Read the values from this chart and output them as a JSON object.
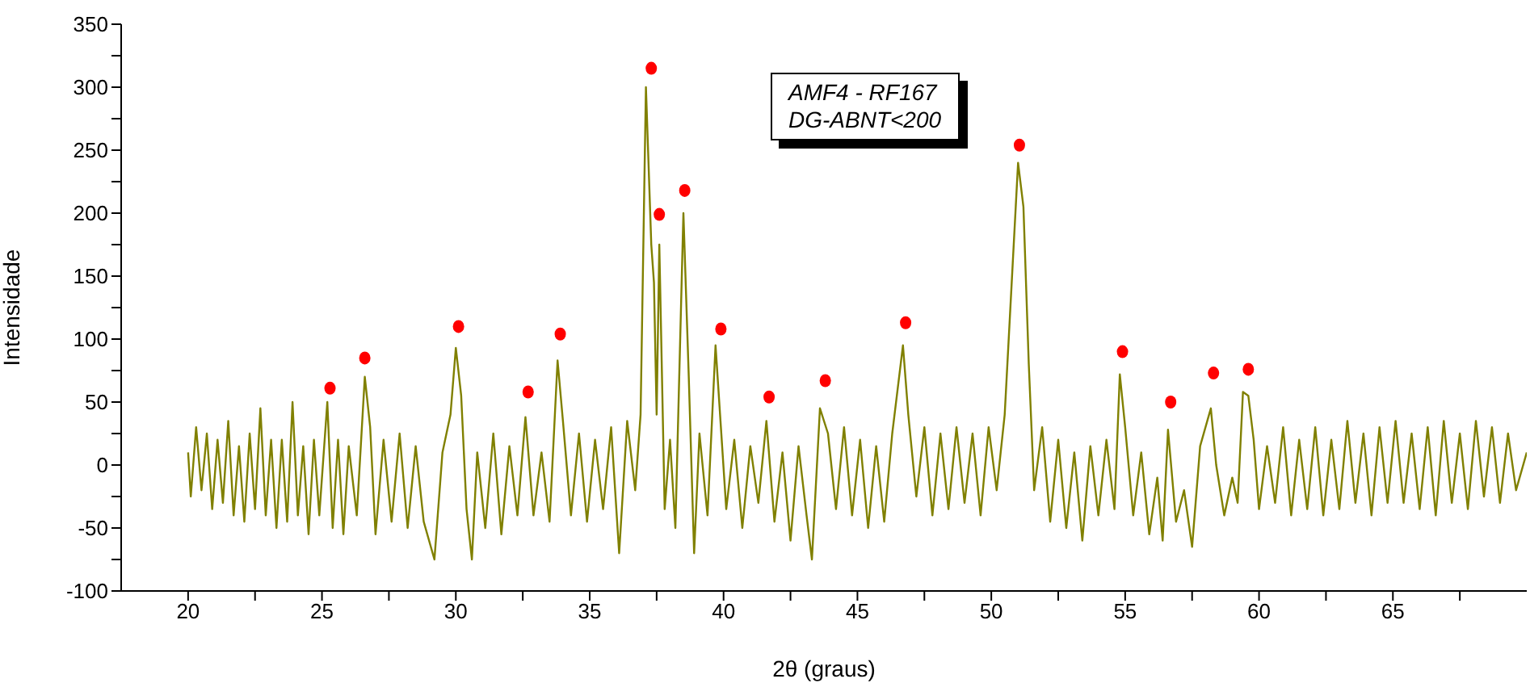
{
  "chart_data": {
    "type": "line",
    "xlabel": "2θ (graus)",
    "ylabel": "Intensidade",
    "annotations": [
      "AMF4 - RF167",
      "DG-ABNT<200"
    ],
    "xlim": [
      17.5,
      70
    ],
    "xticks": [
      {
        "value": 20,
        "label": "20"
      },
      {
        "value": 22.5,
        "label": null
      },
      {
        "value": 25,
        "label": "25"
      },
      {
        "value": 27.5,
        "label": null
      },
      {
        "value": 30,
        "label": "30"
      },
      {
        "value": 32.5,
        "label": null
      },
      {
        "value": 35,
        "label": "35"
      },
      {
        "value": 37.5,
        "label": null
      },
      {
        "value": 40,
        "label": "40"
      },
      {
        "value": 42.5,
        "label": null
      },
      {
        "value": 45,
        "label": "45"
      },
      {
        "value": 47.5,
        "label": null
      },
      {
        "value": 50,
        "label": "50"
      },
      {
        "value": 52.5,
        "label": null
      },
      {
        "value": 55,
        "label": "55"
      },
      {
        "value": 57.5,
        "label": null
      },
      {
        "value": 60,
        "label": "60"
      },
      {
        "value": 62.5,
        "label": null
      },
      {
        "value": 65,
        "label": "65"
      },
      {
        "value": 67.5,
        "label": null
      }
    ],
    "ylim": [
      -100,
      350
    ],
    "yticks": [
      -100,
      {
        "value": -75,
        "label": null
      },
      -50,
      {
        "value": -25,
        "label": null
      },
      0,
      {
        "value": 25,
        "label": null
      },
      50,
      {
        "value": 75,
        "label": null
      },
      100,
      {
        "value": 125,
        "label": null
      },
      150,
      {
        "value": 175,
        "label": null
      },
      200,
      {
        "value": 225,
        "label": null
      },
      250,
      {
        "value": 275,
        "label": null
      },
      300,
      {
        "value": 325,
        "label": null
      },
      350
    ],
    "series": [
      {
        "color": "#808000",
        "marker": "none",
        "line_style": "solid",
        "x": [
          20.0,
          20.1,
          20.3,
          20.5,
          20.7,
          20.9,
          21.1,
          21.3,
          21.5,
          21.7,
          21.9,
          22.1,
          22.3,
          22.5,
          22.7,
          22.9,
          23.1,
          23.3,
          23.5,
          23.7,
          23.9,
          24.1,
          24.3,
          24.5,
          24.7,
          24.9,
          25.2,
          25.4,
          25.6,
          25.8,
          26.0,
          26.3,
          26.6,
          26.8,
          27.0,
          27.3,
          27.6,
          27.9,
          28.2,
          28.5,
          28.8,
          29.2,
          29.5,
          29.8,
          30.0,
          30.2,
          30.4,
          30.6,
          30.8,
          31.1,
          31.4,
          31.7,
          32.0,
          32.3,
          32.6,
          32.9,
          33.2,
          33.5,
          33.8,
          34.0,
          34.3,
          34.6,
          34.9,
          35.2,
          35.5,
          35.8,
          36.1,
          36.4,
          36.7,
          36.9,
          37.1,
          37.3,
          37.4,
          37.5,
          37.6,
          37.8,
          38.0,
          38.2,
          38.5,
          38.7,
          38.9,
          39.1,
          39.4,
          39.7,
          39.9,
          40.1,
          40.4,
          40.7,
          41.0,
          41.3,
          41.6,
          41.9,
          42.2,
          42.5,
          42.8,
          43.1,
          43.3,
          43.6,
          43.9,
          44.2,
          44.5,
          44.8,
          45.1,
          45.4,
          45.7,
          46.0,
          46.3,
          46.7,
          46.9,
          47.2,
          47.5,
          47.8,
          48.1,
          48.4,
          48.7,
          49.0,
          49.3,
          49.6,
          49.9,
          50.2,
          50.5,
          50.8,
          51.0,
          51.2,
          51.4,
          51.6,
          51.9,
          52.2,
          52.5,
          52.8,
          53.1,
          53.4,
          53.7,
          54.0,
          54.3,
          54.6,
          54.8,
          55.0,
          55.3,
          55.6,
          55.9,
          56.2,
          56.4,
          56.6,
          56.9,
          57.2,
          57.5,
          57.8,
          58.2,
          58.4,
          58.7,
          59.0,
          59.2,
          59.4,
          59.6,
          59.8,
          60.0,
          60.3,
          60.6,
          60.9,
          61.2,
          61.5,
          61.8,
          62.1,
          62.4,
          62.7,
          63.0,
          63.3,
          63.6,
          63.9,
          64.2,
          64.5,
          64.8,
          65.1,
          65.4,
          65.7,
          66.0,
          66.3,
          66.6,
          66.9,
          67.2,
          67.5,
          67.8,
          68.1,
          68.4,
          68.7,
          69.0,
          69.3,
          69.6,
          70.0
        ],
        "values": [
          10,
          -25,
          30,
          -20,
          25,
          -35,
          20,
          -30,
          35,
          -40,
          15,
          -45,
          25,
          -35,
          45,
          -40,
          20,
          -50,
          20,
          -45,
          50,
          -40,
          15,
          -55,
          20,
          -40,
          50,
          -50,
          20,
          -55,
          15,
          -40,
          70,
          30,
          -55,
          20,
          -45,
          25,
          -50,
          15,
          -45,
          -75,
          10,
          40,
          93,
          55,
          -35,
          -75,
          10,
          -50,
          25,
          -55,
          15,
          -40,
          38,
          -40,
          10,
          -45,
          83,
          35,
          -40,
          25,
          -45,
          20,
          -35,
          30,
          -70,
          35,
          -20,
          40,
          300,
          175,
          145,
          40,
          175,
          -35,
          20,
          -50,
          200,
          70,
          -70,
          25,
          -40,
          95,
          30,
          -35,
          20,
          -50,
          15,
          -30,
          35,
          -45,
          10,
          -60,
          15,
          -40,
          -75,
          45,
          25,
          -35,
          30,
          -40,
          20,
          -50,
          15,
          -45,
          25,
          95,
          40,
          -25,
          30,
          -40,
          25,
          -35,
          30,
          -30,
          25,
          -40,
          30,
          -20,
          40,
          160,
          240,
          205,
          80,
          -20,
          30,
          -45,
          20,
          -50,
          10,
          -60,
          15,
          -40,
          20,
          -35,
          72,
          30,
          -40,
          10,
          -55,
          -10,
          -60,
          28,
          -45,
          -20,
          -65,
          15,
          45,
          0,
          -40,
          -10,
          -30,
          58,
          55,
          20,
          -35,
          15,
          -30,
          30,
          -40,
          20,
          -35,
          30,
          -40,
          20,
          -35,
          35,
          -30,
          25,
          -40,
          30,
          -30,
          35,
          -30,
          25,
          -35,
          30,
          -40,
          35,
          -30,
          25,
          -35,
          35,
          -25,
          30,
          -30,
          25,
          -20,
          10
        ]
      },
      {
        "type": "scatter",
        "color": "#ff0000",
        "marker": "circle",
        "x": [
          25.3,
          26.6,
          30.1,
          32.7,
          33.9,
          37.3,
          37.6,
          38.55,
          39.9,
          41.7,
          43.8,
          46.8,
          51.05,
          54.9,
          56.7,
          58.3,
          59.6
        ],
        "values": [
          61,
          85,
          110,
          58,
          104,
          315,
          199,
          218,
          108,
          54,
          67,
          113,
          254,
          90,
          50,
          73,
          76
        ]
      }
    ]
  }
}
